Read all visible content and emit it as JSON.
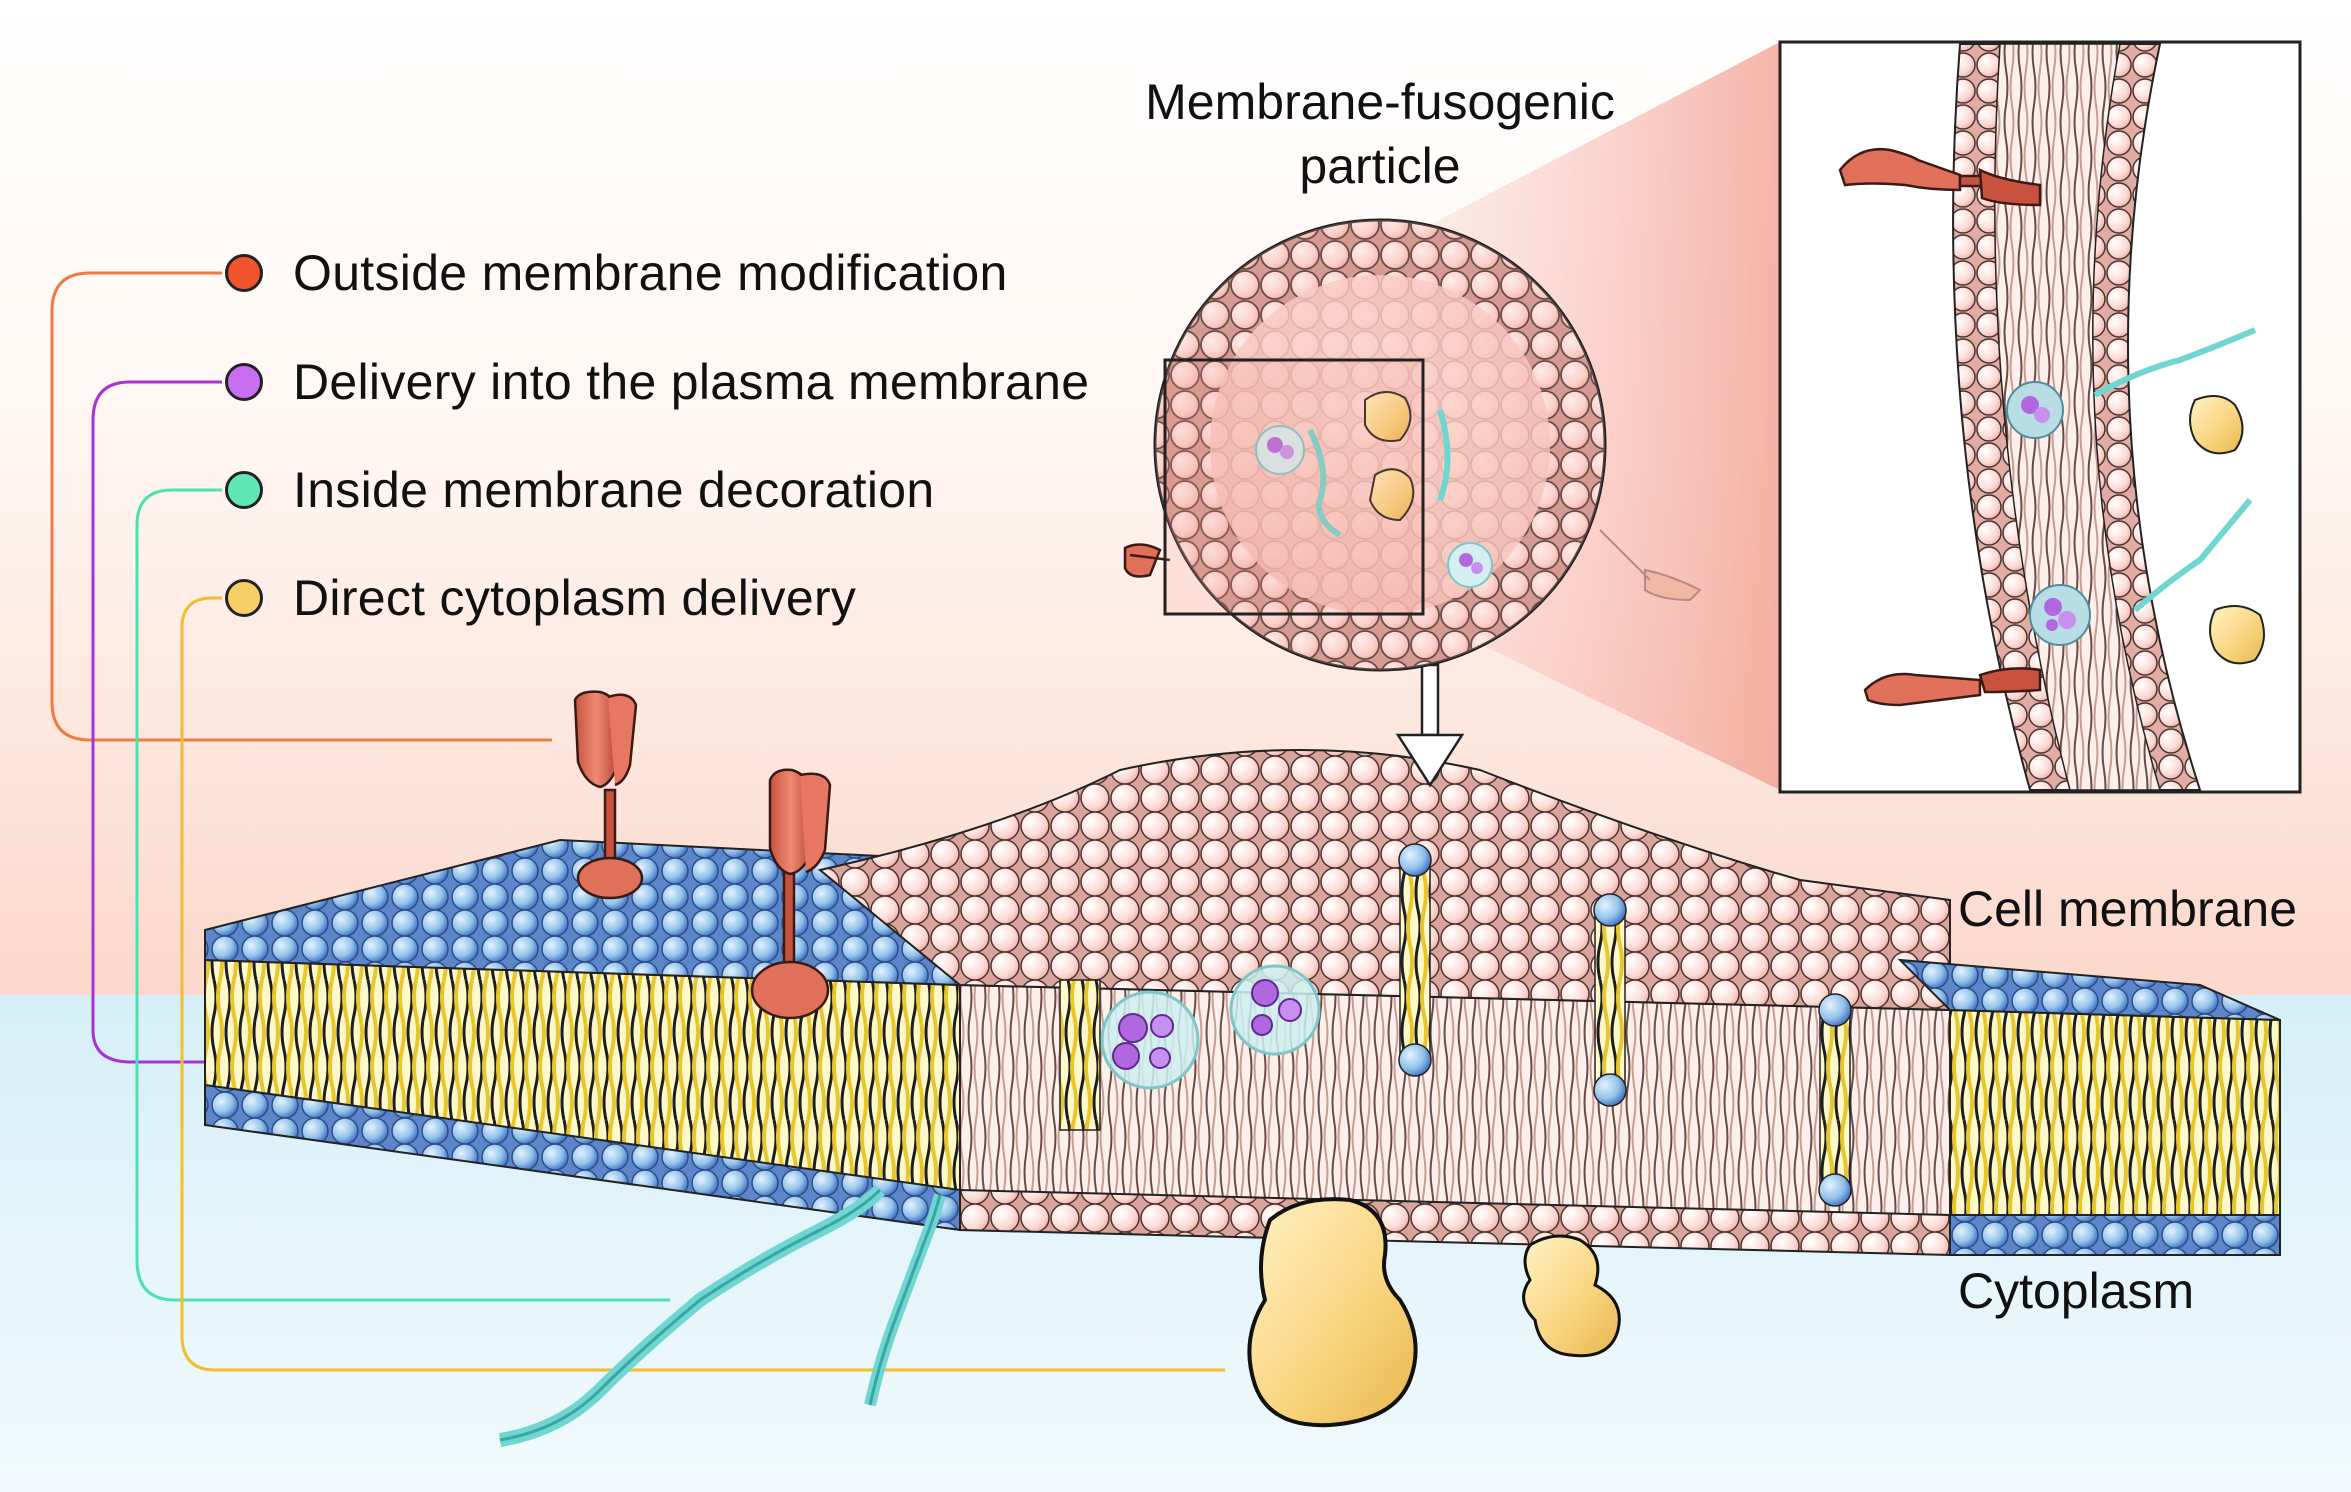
{
  "legend": [
    {
      "label": "Outside membrane modification",
      "color": "#f2542d"
    },
    {
      "label": "Delivery into the plasma membrane",
      "color": "#c86ef0"
    },
    {
      "label": "Inside membrane decoration",
      "color": "#5fe6b6"
    },
    {
      "label": "Direct cytoplasm delivery",
      "color": "#f7cf68"
    }
  ],
  "labels": {
    "particle_line1": "Membrane-fusogenic",
    "particle_line2": "particle",
    "cell_membrane": "Cell membrane",
    "cytoplasm": "Cytoplasm"
  },
  "colors": {
    "extracellular_top": "#ffffff",
    "extracellular_bottom": "#fbd9cd",
    "cytoplasm_bg": "#dff3fa",
    "cell_lipid_head": "#8fbfe8",
    "particle_lipid_head": "#fbd2cc",
    "lipid_tail": "#f3dc3a",
    "protein": "#e0705a",
    "dna": "#6fd6d2",
    "cargo": "#f6d27a",
    "vesicle_cargo": "#a855d6"
  }
}
